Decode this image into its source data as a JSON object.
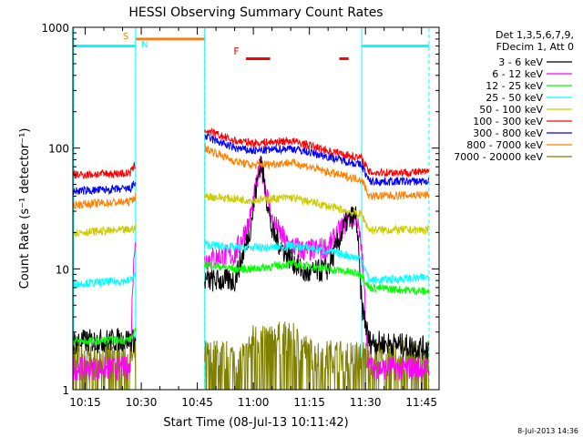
{
  "chart_data": {
    "type": "line",
    "title": "HESSI Observing Summary Count Rates",
    "xlabel": "Start Time (08-Jul-13 10:11:42)",
    "ylabel": "Count Rate (s⁻¹ detector⁻¹)",
    "yscale": "log",
    "ylim": [
      1,
      1000
    ],
    "xlim": [
      "10:11:42",
      "11:49:42"
    ],
    "x_ticks": [
      "10:15",
      "10:30",
      "10:45",
      "11:00",
      "11:15",
      "11:30",
      "11:45"
    ],
    "y_ticks": [
      "1",
      "10",
      "100",
      "1000"
    ],
    "legend_header": [
      "Det 1,3,5,6,7,9,",
      "FDecim 1, Att 0"
    ],
    "legend_position": "right",
    "series": [
      {
        "name": "3 - 6 keV",
        "color": "#000000",
        "points": [
          [
            "10:11:42",
            2.5
          ],
          [
            "10:27:00",
            2.6
          ],
          [
            "10:28:30",
            2.5
          ],
          [
            "10:47:00",
            8
          ],
          [
            "10:55:00",
            8
          ],
          [
            "10:59:00",
            20
          ],
          [
            "11:02:00",
            80
          ],
          [
            "11:05:00",
            20
          ],
          [
            "11:09:00",
            13
          ],
          [
            "11:14:00",
            9
          ],
          [
            "11:20:00",
            10
          ],
          [
            "11:25:00",
            25
          ],
          [
            "11:27:30",
            28
          ],
          [
            "11:29:00",
            5
          ],
          [
            "11:31:00",
            2.5
          ],
          [
            "11:47:00",
            2.2
          ]
        ]
      },
      {
        "name": "6 - 12 keV",
        "color": "#ff00ff",
        "points": [
          [
            "10:11:42",
            1.5
          ],
          [
            "10:27:00",
            1.5
          ],
          [
            "10:28:00",
            14
          ],
          [
            "10:28:30",
            15
          ],
          [
            "10:47:00",
            12
          ],
          [
            "10:55:00",
            13
          ],
          [
            "10:59:00",
            25
          ],
          [
            "11:02:00",
            75
          ],
          [
            "11:05:00",
            25
          ],
          [
            "11:09:00",
            16
          ],
          [
            "11:14:00",
            14
          ],
          [
            "11:20:00",
            15
          ],
          [
            "11:25:00",
            25
          ],
          [
            "11:27:30",
            28
          ],
          [
            "11:29:00",
            14
          ],
          [
            "11:31:00",
            1.5
          ],
          [
            "11:47:00",
            1.5
          ]
        ]
      },
      {
        "name": "12 - 25 keV",
        "color": "#00ff00",
        "points": [
          [
            "10:11:42",
            2.5
          ],
          [
            "10:27:00",
            2.6
          ],
          [
            "10:28:30",
            3
          ],
          [
            "10:47:00",
            11
          ],
          [
            "10:55:00",
            10
          ],
          [
            "11:00:00",
            10
          ],
          [
            "11:05:00",
            10.5
          ],
          [
            "11:10:00",
            11
          ],
          [
            "11:15:00",
            10.5
          ],
          [
            "11:20:00",
            10
          ],
          [
            "11:25:00",
            9.5
          ],
          [
            "11:29:00",
            9
          ],
          [
            "11:31:00",
            7
          ],
          [
            "11:47:00",
            6.5
          ]
        ]
      },
      {
        "name": "25 - 50 keV",
        "color": "#00ffff",
        "points": [
          [
            "10:11:42",
            7.5
          ],
          [
            "10:27:00",
            8
          ],
          [
            "10:28:30",
            9
          ],
          [
            "10:47:00",
            16
          ],
          [
            "10:55:00",
            15
          ],
          [
            "11:00:00",
            15
          ],
          [
            "11:05:00",
            15
          ],
          [
            "11:10:00",
            15.5
          ],
          [
            "11:15:00",
            15
          ],
          [
            "11:20:00",
            14
          ],
          [
            "11:25:00",
            13
          ],
          [
            "11:29:00",
            12
          ],
          [
            "11:31:00",
            8
          ],
          [
            "11:47:00",
            8.5
          ]
        ]
      },
      {
        "name": "50 - 100 keV",
        "color": "#cccc00",
        "points": [
          [
            "10:11:42",
            20
          ],
          [
            "10:27:00",
            21
          ],
          [
            "10:28:30",
            22
          ],
          [
            "10:47:00",
            40
          ],
          [
            "10:55:00",
            38
          ],
          [
            "11:00:00",
            37
          ],
          [
            "11:05:00",
            38
          ],
          [
            "11:10:00",
            39
          ],
          [
            "11:15:00",
            36
          ],
          [
            "11:20:00",
            33
          ],
          [
            "11:25:00",
            30
          ],
          [
            "11:29:00",
            28
          ],
          [
            "11:31:00",
            21
          ],
          [
            "11:47:00",
            21
          ]
        ]
      },
      {
        "name": "100 - 300 keV",
        "color": "#ff0000",
        "points": [
          [
            "10:11:42",
            60
          ],
          [
            "10:27:00",
            62
          ],
          [
            "10:28:30",
            73
          ],
          [
            "10:47:00",
            140
          ],
          [
            "10:55:00",
            115
          ],
          [
            "11:00:00",
            110
          ],
          [
            "11:05:00",
            112
          ],
          [
            "11:10:00",
            115
          ],
          [
            "11:15:00",
            105
          ],
          [
            "11:20:00",
            95
          ],
          [
            "11:25:00",
            88
          ],
          [
            "11:29:00",
            82
          ],
          [
            "11:31:00",
            63
          ],
          [
            "11:47:00",
            63
          ]
        ]
      },
      {
        "name": "300 - 800 keV",
        "color": "#0000ff",
        "points": [
          [
            "10:11:42",
            44
          ],
          [
            "10:27:00",
            46
          ],
          [
            "10:28:30",
            52
          ],
          [
            "10:47:00",
            125
          ],
          [
            "10:55:00",
            100
          ],
          [
            "11:00:00",
            95
          ],
          [
            "11:05:00",
            97
          ],
          [
            "11:10:00",
            100
          ],
          [
            "11:15:00",
            92
          ],
          [
            "11:20:00",
            85
          ],
          [
            "11:25:00",
            78
          ],
          [
            "11:29:00",
            72
          ],
          [
            "11:31:00",
            53
          ],
          [
            "11:47:00",
            53
          ]
        ]
      },
      {
        "name": "800 - 7000 keV",
        "color": "#ff8000",
        "points": [
          [
            "10:11:42",
            34
          ],
          [
            "10:27:00",
            36
          ],
          [
            "10:28:30",
            40
          ],
          [
            "10:47:00",
            100
          ],
          [
            "10:55:00",
            78
          ],
          [
            "11:00:00",
            72
          ],
          [
            "11:05:00",
            74
          ],
          [
            "11:10:00",
            76
          ],
          [
            "11:15:00",
            70
          ],
          [
            "11:20:00",
            63
          ],
          [
            "11:25:00",
            58
          ],
          [
            "11:29:00",
            55
          ],
          [
            "11:31:00",
            40
          ],
          [
            "11:47:00",
            41
          ]
        ]
      },
      {
        "name": "7000 - 20000 keV",
        "color": "#808000",
        "points": [
          [
            "10:11:42",
            1.9
          ],
          [
            "10:27:00",
            1.9
          ],
          [
            "10:28:30",
            1.9
          ],
          [
            "10:47:00",
            1.9
          ],
          [
            "10:58:00",
            1.9
          ],
          [
            "11:00:00",
            2.6
          ],
          [
            "11:10:00",
            2.7
          ],
          [
            "11:16:00",
            1.9
          ],
          [
            "11:29:00",
            1.9
          ],
          [
            "11:31:00",
            1.9
          ],
          [
            "11:47:00",
            1.9
          ]
        ]
      }
    ],
    "annotations": [
      {
        "text": "S",
        "color": "#ff8000",
        "x": "10:28:30"
      },
      {
        "text": "N",
        "color": "#00ffff",
        "x": "10:30:30"
      },
      {
        "text": "F",
        "color": "#ff0000",
        "x": "11:02:30"
      }
    ],
    "state_bars": [
      {
        "name": "night",
        "color": "#00ffff",
        "segments": [
          [
            "10:11:42",
            "10:28:30"
          ],
          [
            "11:29:00",
            "11:47:00"
          ]
        ],
        "level": 700
      },
      {
        "name": "saa",
        "color": "#ff8000",
        "segments": [
          [
            "10:28:30",
            "10:47:00"
          ]
        ],
        "level": 800
      },
      {
        "name": "flare",
        "color": "#ff0000",
        "segments": [
          [
            "10:58:00",
            "11:04:30"
          ],
          [
            "11:23:00",
            "11:25:30"
          ]
        ],
        "level": 550
      }
    ],
    "data_gaps": [
      [
        "10:28:30",
        "10:47:00"
      ]
    ],
    "gridlines": false
  },
  "footer": {
    "timestamp": "8-Jul-2013 14:36"
  }
}
